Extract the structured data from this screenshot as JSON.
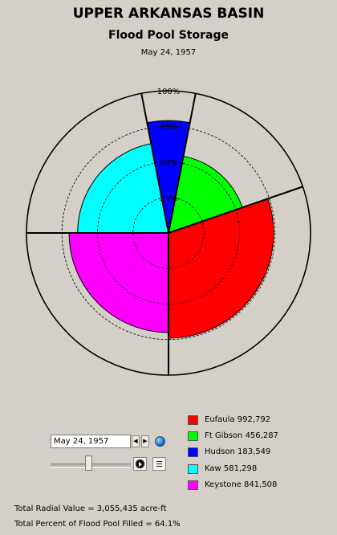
{
  "header": {
    "title": "UPPER ARKANSAS BASIN",
    "subtitle": "Flood Pool Storage",
    "date": "May 24, 1957"
  },
  "chart_data": {
    "type": "polar-area",
    "title": "UPPER ARKANSAS BASIN",
    "subtitle": "Flood Pool Storage",
    "date_label": "May 24, 1957",
    "radial_scale": {
      "min": 0,
      "max": 100,
      "unit": "% of flood pool filled"
    },
    "ring_labels": [
      "25%",
      "50%",
      "75%",
      "100%"
    ],
    "ring_values": [
      25,
      50,
      75,
      100
    ],
    "grid": true,
    "legend_position": "right",
    "series": [
      {
        "name": "Eufaula",
        "value": 992792,
        "pct_filled": 74,
        "start_deg": 341,
        "end_deg": 90,
        "color": "#ff0000"
      },
      {
        "name": "Ft Gibson",
        "value": 456287,
        "pct_filled": 55,
        "start_deg": 281,
        "end_deg": 341,
        "color": "#00ff00"
      },
      {
        "name": "Hudson",
        "value": 183549,
        "pct_filled": 79,
        "start_deg": 259,
        "end_deg": 281,
        "color": "#0000ff"
      },
      {
        "name": "Kaw",
        "value": 581298,
        "pct_filled": 64,
        "start_deg": 180,
        "end_deg": 259,
        "color": "#00ffff"
      },
      {
        "name": "Keystone",
        "value": 841508,
        "pct_filled": 70,
        "start_deg": 90,
        "end_deg": 180,
        "color": "#ff00ff"
      }
    ],
    "wedge_boundaries_deg": [
      341,
      90,
      180,
      259,
      281
    ]
  },
  "controls": {
    "date_value": "May 24, 1957"
  },
  "legend": {
    "items": [
      {
        "label": "Eufaula  992,792",
        "color": "#ff0000"
      },
      {
        "label": "Ft Gibson  456,287",
        "color": "#00ff00"
      },
      {
        "label": "Hudson  183,549",
        "color": "#0000ff"
      },
      {
        "label": "Kaw  581,298",
        "color": "#00ffff"
      },
      {
        "label": "Keystone  841,508",
        "color": "#ff00ff"
      }
    ]
  },
  "footer": {
    "total_radial": "Total Radial Value =  3,055,435 acre-ft",
    "total_percent": "Total Percent of Flood Pool Filled =  64.1%"
  }
}
